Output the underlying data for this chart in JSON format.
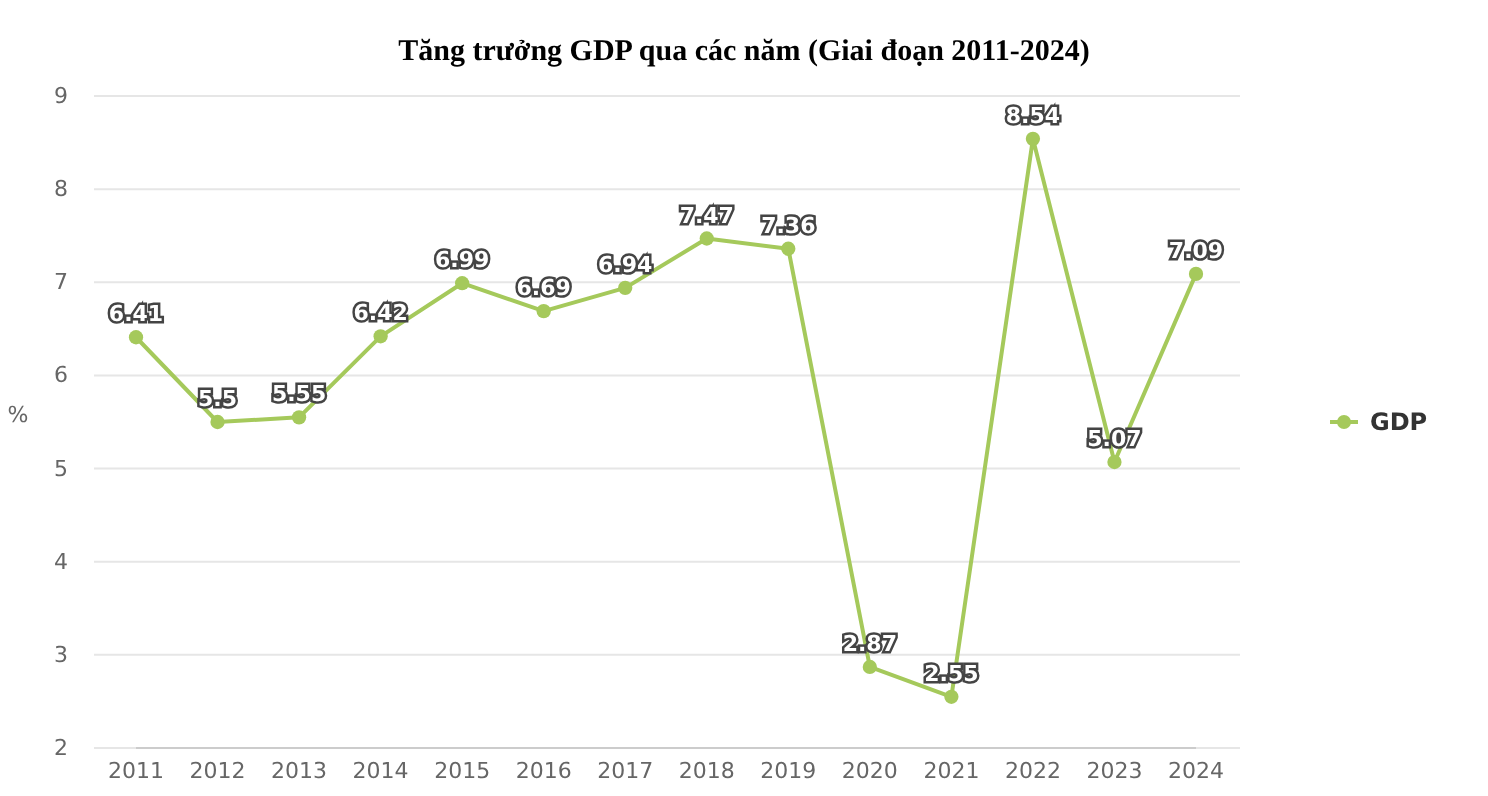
{
  "chart_data": {
    "type": "line",
    "title": "Tăng trưởng GDP qua các năm (Giai đoạn 2011-2024)",
    "ylabel": "%",
    "categories": [
      "2011",
      "2012",
      "2013",
      "2014",
      "2015",
      "2016",
      "2017",
      "2018",
      "2019",
      "2020",
      "2021",
      "2022",
      "2023",
      "2024"
    ],
    "series": [
      {
        "name": "GDP",
        "color": "#a5c95b",
        "values": [
          6.41,
          5.5,
          5.55,
          6.42,
          6.99,
          6.69,
          6.94,
          7.47,
          7.36,
          2.87,
          2.55,
          8.54,
          5.07,
          7.09
        ]
      }
    ],
    "ylim": [
      2,
      9
    ],
    "yticks": [
      2,
      3,
      4,
      5,
      6,
      7,
      8,
      9
    ],
    "grid": "y",
    "legend": "right",
    "marker": "circle",
    "line_style": "solid",
    "data_labels": true
  }
}
